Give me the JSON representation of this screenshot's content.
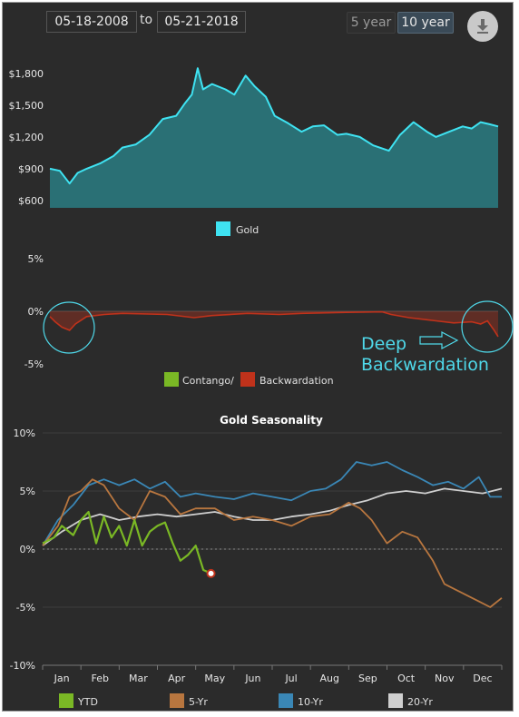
{
  "controls": {
    "start_date": "05-18-2008",
    "separator": "to",
    "end_date": "05-21-2018",
    "btn_5y": "5 year",
    "btn_10y": "10 year",
    "download_icon": "download-arrow-icon"
  },
  "colors": {
    "background": "#2b2b2b",
    "gold_line": "#3fe3f2",
    "gold_fill": "#2a7d82",
    "contango": "#7ab825",
    "backwardation": "#c0321b",
    "ytd": "#7ab825",
    "five_yr": "#b8763f",
    "ten_yr": "#3a87b6",
    "twenty_yr": "#cfcfcf",
    "annotation": "#4fd9ea"
  },
  "chart_data": [
    {
      "type": "area",
      "y_ticks": [
        "$1,800",
        "$1,500",
        "$1,200",
        "$900",
        "$600"
      ],
      "y_tick_values": [
        1800,
        1500,
        1200,
        900,
        600
      ],
      "ylim": [
        530,
        1920
      ],
      "xlim": [
        2008.38,
        2018.39
      ],
      "legend": [
        "Gold"
      ],
      "series": [
        {
          "name": "Gold",
          "x": [
            2008.38,
            2008.6,
            2008.82,
            2009.0,
            2009.2,
            2009.5,
            2009.8,
            2010.0,
            2010.3,
            2010.6,
            2010.9,
            2011.2,
            2011.4,
            2011.55,
            2011.68,
            2011.8,
            2012.0,
            2012.3,
            2012.5,
            2012.75,
            2012.95,
            2013.2,
            2013.4,
            2013.7,
            2014.0,
            2014.25,
            2014.5,
            2014.8,
            2015.0,
            2015.3,
            2015.6,
            2015.95,
            2016.2,
            2016.5,
            2016.8,
            2017.0,
            2017.3,
            2017.6,
            2017.8,
            2018.0,
            2018.2,
            2018.39
          ],
          "values": [
            900,
            880,
            760,
            860,
            900,
            950,
            1020,
            1100,
            1130,
            1220,
            1370,
            1400,
            1520,
            1600,
            1850,
            1650,
            1700,
            1650,
            1600,
            1780,
            1680,
            1580,
            1400,
            1330,
            1250,
            1300,
            1310,
            1220,
            1230,
            1200,
            1120,
            1070,
            1220,
            1340,
            1250,
            1200,
            1250,
            1300,
            1280,
            1340,
            1320,
            1300
          ]
        }
      ]
    },
    {
      "type": "area",
      "y_ticks": [
        "5%",
        "0%",
        "-5%"
      ],
      "y_tick_values": [
        5,
        0,
        -5
      ],
      "ylim": [
        -5.5,
        5.5
      ],
      "xlim": [
        2008.38,
        2018.39
      ],
      "legend": [
        "Contango/",
        "Backwardation"
      ],
      "series": [
        {
          "name": "Backwardation",
          "x": [
            2008.38,
            2008.5,
            2008.65,
            2008.82,
            2008.95,
            2009.2,
            2009.6,
            2010.0,
            2011.0,
            2011.6,
            2012.0,
            2012.8,
            2013.5,
            2014.0,
            2015.0,
            2015.8,
            2016.0,
            2016.4,
            2016.8,
            2017.0,
            2017.4,
            2017.8,
            2018.0,
            2018.15,
            2018.3,
            2018.39
          ],
          "values": [
            -0.5,
            -1.0,
            -1.5,
            -1.8,
            -1.2,
            -0.5,
            -0.3,
            -0.2,
            -0.3,
            -0.6,
            -0.4,
            -0.2,
            -0.3,
            -0.2,
            -0.1,
            -0.05,
            -0.3,
            -0.6,
            -0.8,
            -0.9,
            -1.1,
            -1.0,
            -1.2,
            -0.9,
            -1.8,
            -2.4
          ]
        }
      ],
      "annotations": [
        "Deep",
        "Backwardation"
      ]
    },
    {
      "type": "line",
      "title": "Gold Seasonality",
      "x_ticks": [
        "Jan",
        "Feb",
        "Mar",
        "Apr",
        "May",
        "Jun",
        "Jul",
        "Aug",
        "Sep",
        "Oct",
        "Nov",
        "Dec"
      ],
      "y_ticks": [
        "10%",
        "5%",
        "0%",
        "-5%",
        "-10%"
      ],
      "y_tick_values": [
        10,
        5,
        0,
        -5,
        -10
      ],
      "ylim": [
        -10,
        10
      ],
      "xlim": [
        0,
        12
      ],
      "legend": [
        "YTD",
        "5-Yr",
        "10-Yr",
        "20-Yr"
      ],
      "series": [
        {
          "name": "YTD",
          "x": [
            0,
            0.3,
            0.5,
            0.8,
            1.0,
            1.2,
            1.4,
            1.6,
            1.8,
            2.0,
            2.2,
            2.4,
            2.6,
            2.8,
            3.0,
            3.2,
            3.4,
            3.6,
            3.8,
            4.0,
            4.2,
            4.4
          ],
          "values": [
            0.5,
            1.0,
            2.0,
            1.2,
            2.5,
            3.2,
            0.5,
            2.8,
            1.0,
            2.0,
            0.3,
            2.5,
            0.3,
            1.5,
            2.0,
            2.3,
            0.5,
            -1.0,
            -0.5,
            0.3,
            -1.8,
            -2.1
          ]
        },
        {
          "name": "5-Yr",
          "x": [
            0,
            0.4,
            0.7,
            1.0,
            1.3,
            1.6,
            2.0,
            2.4,
            2.8,
            3.2,
            3.6,
            4.0,
            4.5,
            5.0,
            5.5,
            6.0,
            6.5,
            7.0,
            7.5,
            8.0,
            8.3,
            8.6,
            9.0,
            9.4,
            9.8,
            10.2,
            10.5,
            10.8,
            11.1,
            11.4,
            11.7,
            12.0
          ],
          "values": [
            0.3,
            2.0,
            4.5,
            5.0,
            6.0,
            5.5,
            3.5,
            2.5,
            5.0,
            4.5,
            3.0,
            3.5,
            3.5,
            2.5,
            2.8,
            2.5,
            2.0,
            2.8,
            3.0,
            4.0,
            3.5,
            2.5,
            0.5,
            1.5,
            1.0,
            -1.0,
            -3.0,
            -3.5,
            -4.0,
            -4.5,
            -5.0,
            -4.2
          ]
        },
        {
          "name": "10-Yr",
          "x": [
            0,
            0.4,
            0.8,
            1.2,
            1.6,
            2.0,
            2.4,
            2.8,
            3.2,
            3.6,
            4.0,
            4.5,
            5.0,
            5.5,
            6.0,
            6.5,
            7.0,
            7.4,
            7.8,
            8.2,
            8.6,
            9.0,
            9.4,
            9.8,
            10.2,
            10.6,
            11.0,
            11.4,
            11.7,
            12.0
          ],
          "values": [
            0.3,
            2.5,
            3.8,
            5.5,
            6.0,
            5.5,
            6.0,
            5.2,
            5.8,
            4.5,
            4.8,
            4.5,
            4.3,
            4.8,
            4.5,
            4.2,
            5.0,
            5.2,
            6.0,
            7.5,
            7.2,
            7.5,
            6.8,
            6.2,
            5.5,
            5.8,
            5.2,
            6.2,
            4.5,
            4.5
          ]
        },
        {
          "name": "20-Yr",
          "x": [
            0,
            0.5,
            1.0,
            1.5,
            2.0,
            2.5,
            3.0,
            3.5,
            4.0,
            4.5,
            5.0,
            5.5,
            6.0,
            6.5,
            7.0,
            7.5,
            8.0,
            8.5,
            9.0,
            9.5,
            10.0,
            10.5,
            11.0,
            11.5,
            12.0
          ],
          "values": [
            0.3,
            1.5,
            2.5,
            3.0,
            2.5,
            2.8,
            3.0,
            2.8,
            3.0,
            3.2,
            2.8,
            2.5,
            2.5,
            2.8,
            3.0,
            3.3,
            3.8,
            4.2,
            4.8,
            5.0,
            4.8,
            5.2,
            5.0,
            4.8,
            5.2
          ]
        }
      ]
    }
  ]
}
